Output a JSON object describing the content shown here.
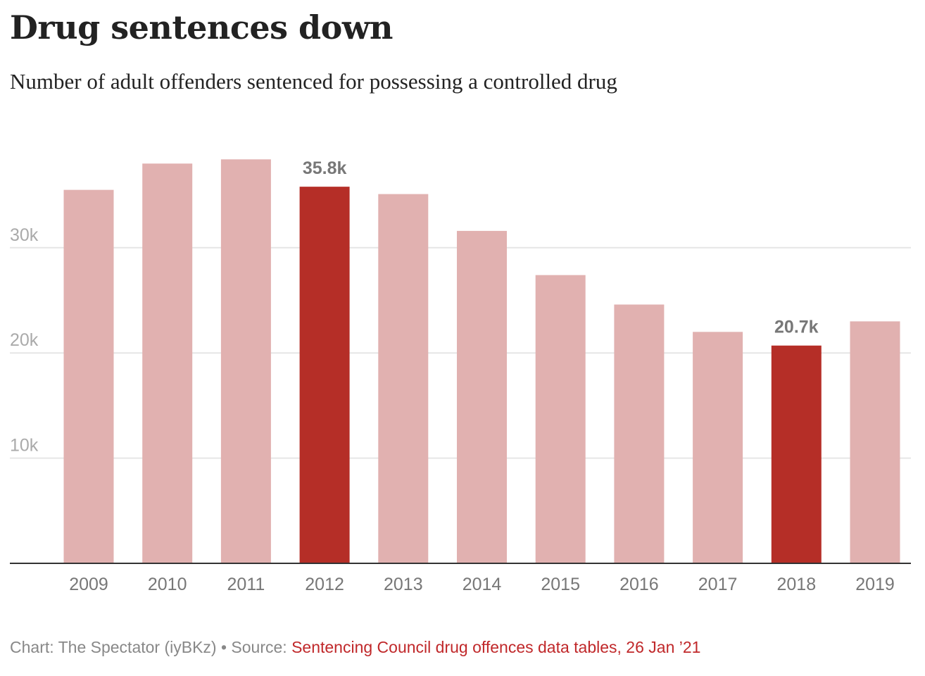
{
  "title": "Drug sentences down",
  "subtitle": "Number of adult offenders sentenced for possessing a controlled drug",
  "footer": {
    "credit": "Chart: The Spectator (iyBKz) • Source: ",
    "source": "Sentencing Council drug offences data tables, 26 Jan ’21"
  },
  "colors": {
    "bar": "#e1b1b0",
    "highlight": "#b52e27",
    "source_link": "#c0282a"
  },
  "chart_data": {
    "type": "bar",
    "title": "Drug sentences down",
    "subtitle": "Number of adult offenders sentenced for possessing a controlled drug",
    "xlabel": "",
    "ylabel": "",
    "categories": [
      "2009",
      "2010",
      "2011",
      "2012",
      "2013",
      "2014",
      "2015",
      "2016",
      "2017",
      "2018",
      "2019"
    ],
    "values": [
      35500,
      38000,
      38400,
      35800,
      35100,
      31600,
      27400,
      24600,
      22000,
      20700,
      23000
    ],
    "highlighted": [
      "2012",
      "2018"
    ],
    "data_labels": [
      {
        "category": "2012",
        "label": "35.8k"
      },
      {
        "category": "2018",
        "label": "20.7k"
      }
    ],
    "yticks": [
      {
        "value": 10000,
        "label": "10k"
      },
      {
        "value": 20000,
        "label": "20k"
      },
      {
        "value": 30000,
        "label": "30k"
      }
    ],
    "ylim": [
      0,
      40000
    ],
    "grid": true,
    "legend": "none"
  }
}
